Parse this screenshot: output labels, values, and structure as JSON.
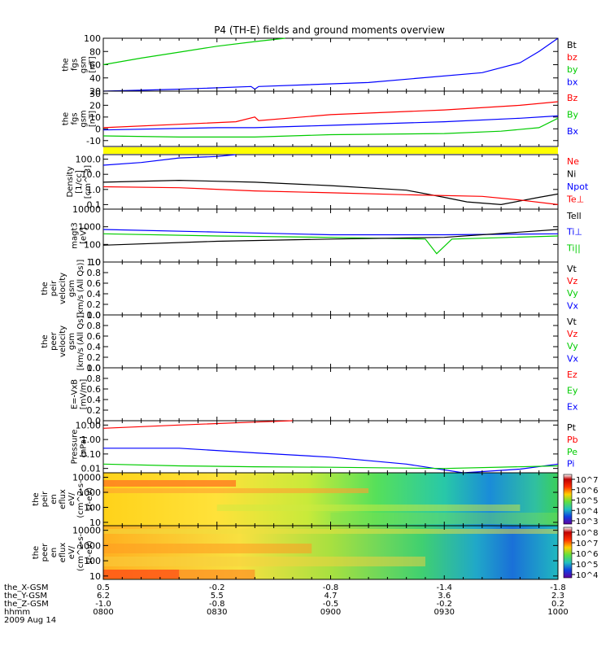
{
  "chart_data": {
    "type": "line",
    "title": "P4 (TH-E) fields and ground moments overview",
    "x": {
      "tick_labels": [
        "0800",
        "0830",
        "0900",
        "0930",
        "1000"
      ],
      "rows": [
        {
          "name": "the_X-GSM",
          "values": [
            "0.5",
            "-0.2",
            "-0.8",
            "-1.4",
            "-1.8"
          ]
        },
        {
          "name": "the_Y-GSM",
          "values": [
            "6.2",
            "5.5",
            "4.7",
            "3.6",
            "2.3"
          ]
        },
        {
          "name": "the_Z-GSM",
          "values": [
            "-1.0",
            "-0.8",
            "-0.5",
            "-0.2",
            "0.2"
          ]
        },
        {
          "name": "hhmm",
          "values": [
            "0800",
            "0830",
            "0900",
            "0930",
            "1000"
          ]
        }
      ],
      "date": "2009 Aug 14"
    },
    "panels": [
      {
        "ylabel": [
          "the",
          "fgs",
          "gsm",
          "[nT]"
        ],
        "ticks": [
          "100",
          "80",
          "60",
          "40",
          "20"
        ],
        "legend": [
          {
            "name": "Bt",
            "color": "#000000"
          },
          {
            "name": "bz",
            "color": "#ff0000"
          },
          {
            "name": "by",
            "color": "#00cc00"
          },
          {
            "name": "bx",
            "color": "#0000ff"
          }
        ],
        "series": [
          {
            "name": "by",
            "color": "#00cc00",
            "x_minutes": [
              0,
              10,
              20,
              30,
              40,
              48
            ],
            "y": [
              60,
              70,
              79,
              88,
              95,
              100
            ]
          },
          {
            "name": "bx",
            "color": "#0000ff",
            "x_minutes": [
              0,
              20,
              39,
              40,
              41,
              70,
              100,
              110,
              115,
              120
            ],
            "y": [
              20,
              23,
              27,
              23,
              27,
              33,
              48,
              63,
              80,
              100
            ]
          }
        ]
      },
      {
        "ylabel": [
          "the",
          "fgs",
          "gsm",
          "[nT]"
        ],
        "ticks": [
          "30",
          "20",
          "10",
          "0",
          "-10"
        ],
        "legend": [
          {
            "name": "Bz",
            "color": "#ff0000"
          },
          {
            "name": "By",
            "color": "#00cc00"
          },
          {
            "name": "Bx",
            "color": "#0000ff"
          }
        ],
        "series": [
          {
            "name": "Bz",
            "color": "#ff0000",
            "x_minutes": [
              0,
              35,
              40,
              41,
              60,
              90,
              110,
              120
            ],
            "y": [
              1,
              6,
              10,
              7,
              12,
              16,
              20,
              23
            ]
          },
          {
            "name": "Bx",
            "color": "#0000ff",
            "x_minutes": [
              0,
              30,
              40,
              60,
              90,
              110,
              120
            ],
            "y": [
              -1,
              1,
              1,
              3,
              6,
              9,
              11
            ]
          },
          {
            "name": "By",
            "color": "#00cc00",
            "x_minutes": [
              0,
              20,
              40,
              60,
              90,
              105,
              115,
              120
            ],
            "y": [
              -6,
              -7,
              -7,
              -5,
              -4,
              -2,
              1,
              9
            ]
          }
        ]
      },
      {
        "ylabel": [
          "Density",
          "[1/cc]",
          "[cm^-3]"
        ],
        "ticks": [
          "100.0",
          "10.0",
          "1.0",
          "0.1"
        ],
        "legend": [
          {
            "name": "Ne",
            "color": "#ff0000"
          },
          {
            "name": "Ni",
            "color": "#000000"
          },
          {
            "name": "Npot",
            "color": "#0000ff"
          },
          {
            "name": "Te⊥",
            "color": "#ff0000"
          }
        ],
        "series": [
          {
            "name": "Npot",
            "color": "#0000ff",
            "x_minutes": [
              0,
              10,
              20,
              30,
              35
            ],
            "y": [
              40,
              60,
              120,
              150,
              200
            ]
          },
          {
            "name": "Ni",
            "color": "#000000",
            "x_minutes": [
              0,
              20,
              40,
              60,
              80,
              90,
              96,
              105,
              115,
              120
            ],
            "y": [
              3,
              4,
              3,
              1.8,
              0.9,
              0.3,
              0.15,
              0.1,
              0.3,
              0.5
            ]
          },
          {
            "name": "Ne",
            "color": "#ff0000",
            "x_minutes": [
              0,
              20,
              40,
              60,
              80,
              100,
              110,
              120
            ],
            "y": [
              1.5,
              1.3,
              0.8,
              0.6,
              0.45,
              0.35,
              0.2,
              0.1
            ]
          }
        ]
      },
      {
        "ylabel": [
          "magt3",
          "[eV]"
        ],
        "ticks": [
          "10000",
          "1000",
          "100",
          "10"
        ],
        "legend": [
          {
            "name": "Tell",
            "color": "#000000"
          },
          {
            "name": "Ti⊥",
            "color": "#0000ff"
          },
          {
            "name": "Ti||",
            "color": "#00cc00"
          }
        ],
        "series": [
          {
            "name": "Ti⊥",
            "color": "#0000ff",
            "x_minutes": [
              0,
              30,
              60,
              90,
              120
            ],
            "y": [
              700,
              500,
              350,
              350,
              400
            ]
          },
          {
            "name": "Ti||",
            "color": "#00cc00",
            "x_minutes": [
              0,
              30,
              60,
              85,
              88,
              92,
              120
            ],
            "y": [
              400,
              300,
              250,
              200,
              30,
              200,
              300
            ]
          },
          {
            "name": "Tell",
            "color": "#000000",
            "x_minutes": [
              0,
              30,
              60,
              90,
              120
            ],
            "y": [
              90,
              150,
              200,
              250,
              700
            ]
          }
        ]
      },
      {
        "ylabel": [
          "the",
          "peir",
          "velocity",
          "gsm",
          "[km/s (All Qs)]"
        ],
        "ticks": [
          "1.0",
          "0.8",
          "0.6",
          "0.4",
          "0.2",
          "0.0"
        ],
        "legend": [
          {
            "name": "Vt",
            "color": "#000000"
          },
          {
            "name": "Vz",
            "color": "#ff0000"
          },
          {
            "name": "Vy",
            "color": "#00cc00"
          },
          {
            "name": "Vx",
            "color": "#0000ff"
          }
        ]
      },
      {
        "ylabel": [
          "the",
          "peer",
          "velocity",
          "gsm",
          "[km/s (All Qs)]"
        ],
        "ticks": [
          "1.0",
          "0.8",
          "0.6",
          "0.4",
          "0.2",
          "0.0"
        ],
        "legend": [
          {
            "name": "Vt",
            "color": "#000000"
          },
          {
            "name": "Vz",
            "color": "#ff0000"
          },
          {
            "name": "Vy",
            "color": "#00cc00"
          },
          {
            "name": "Vx",
            "color": "#0000ff"
          }
        ]
      },
      {
        "ylabel": [
          "E=-VxB",
          "[mV/m]"
        ],
        "ticks": [
          "1.0",
          "0.8",
          "0.6",
          "0.4",
          "0.2",
          "0.0"
        ],
        "legend": [
          {
            "name": "Ez",
            "color": "#ff0000"
          },
          {
            "name": "Ey",
            "color": "#00cc00"
          },
          {
            "name": "Ex",
            "color": "#0000ff"
          }
        ]
      },
      {
        "ylabel": [
          "Pressure",
          "[nPa]"
        ],
        "ticks": [
          "10.00",
          "1.00",
          "0.10",
          "0.01"
        ],
        "legend": [
          {
            "name": "Pt",
            "color": "#000000"
          },
          {
            "name": "Pb",
            "color": "#ff0000"
          },
          {
            "name": "Pe",
            "color": "#00cc00"
          },
          {
            "name": "Pi",
            "color": "#0000ff"
          }
        ],
        "series": [
          {
            "name": "Pb",
            "color": "#ff0000",
            "x_minutes": [
              0,
              20,
              40,
              50
            ],
            "y": [
              6,
              10,
              16,
              20
            ]
          },
          {
            "name": "Pi",
            "color": "#0000ff",
            "x_minutes": [
              0,
              20,
              40,
              60,
              80,
              95,
              110,
              120
            ],
            "y": [
              0.25,
              0.25,
              0.12,
              0.06,
              0.02,
              0.005,
              0.009,
              0.02
            ]
          },
          {
            "name": "Pe",
            "color": "#00cc00",
            "x_minutes": [
              0,
              20,
              40,
              60,
              90,
              120
            ],
            "y": [
              0.02,
              0.015,
              0.013,
              0.012,
              0.01,
              0.015
            ]
          }
        ]
      },
      {
        "ylabel": [
          "the",
          "peir",
          "en",
          "eflux",
          "eV/",
          "(cm^2-s-",
          "sr-eV)"
        ],
        "ticks": [
          "10000",
          "1000",
          "100",
          "10"
        ],
        "colorbar": [
          "10^7",
          "10^6",
          "10^5",
          "10^4",
          "10^3"
        ]
      },
      {
        "ylabel": [
          "the",
          "peer",
          "en",
          "eflux",
          "eV/",
          "(cm^2-s-",
          "sr-eV)"
        ],
        "ticks": [
          "10000",
          "1000",
          "100",
          "10"
        ],
        "colorbar": [
          "10^8",
          "10^7",
          "10^6",
          "10^5",
          "10^4"
        ]
      }
    ],
    "grid": false,
    "legend_position": "right"
  }
}
